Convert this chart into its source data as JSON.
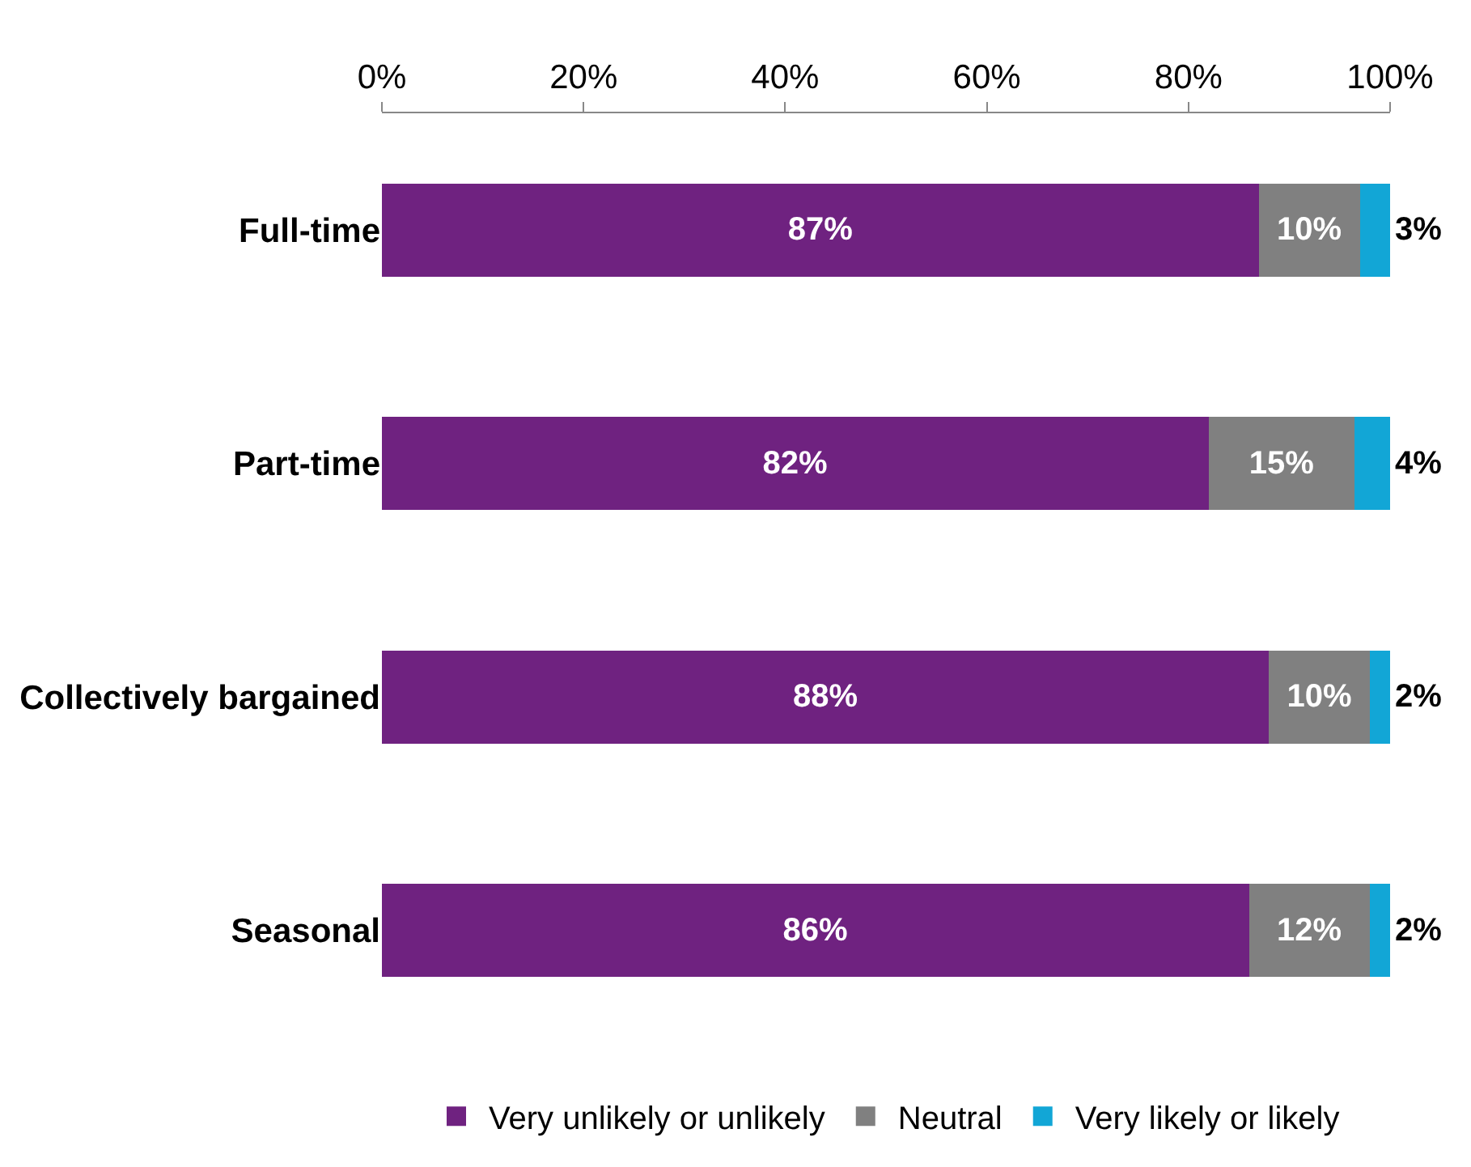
{
  "chart_data": {
    "type": "bar",
    "orientation": "horizontal",
    "stacked": true,
    "categories": [
      "Full-time",
      "Part-time",
      "Collectively bargained",
      "Seasonal"
    ],
    "series": [
      {
        "name": "Very unlikely or unlikely",
        "color": "#6f2280",
        "values": [
          87,
          82,
          88,
          86
        ],
        "value_labels": [
          "87%",
          "82%",
          "88%",
          "86%"
        ]
      },
      {
        "name": "Neutral",
        "color": "#808080",
        "values": [
          10,
          14.5,
          10,
          12
        ],
        "value_labels": [
          "10%",
          "15%",
          "10%",
          "12%"
        ]
      },
      {
        "name": "Very likely or likely",
        "color": "#12a6d6",
        "values": [
          3,
          3.5,
          2,
          2
        ],
        "value_labels": [
          "3%",
          "4%",
          "2%",
          "2%"
        ]
      }
    ],
    "xlim": [
      0,
      100
    ],
    "xticks": [
      {
        "value": 0,
        "label": "0%"
      },
      {
        "value": 20,
        "label": "20%"
      },
      {
        "value": 40,
        "label": "40%"
      },
      {
        "value": 60,
        "label": "60%"
      },
      {
        "value": 80,
        "label": "80%"
      },
      {
        "value": 100,
        "label": "100%"
      }
    ],
    "legend": "bottom"
  }
}
